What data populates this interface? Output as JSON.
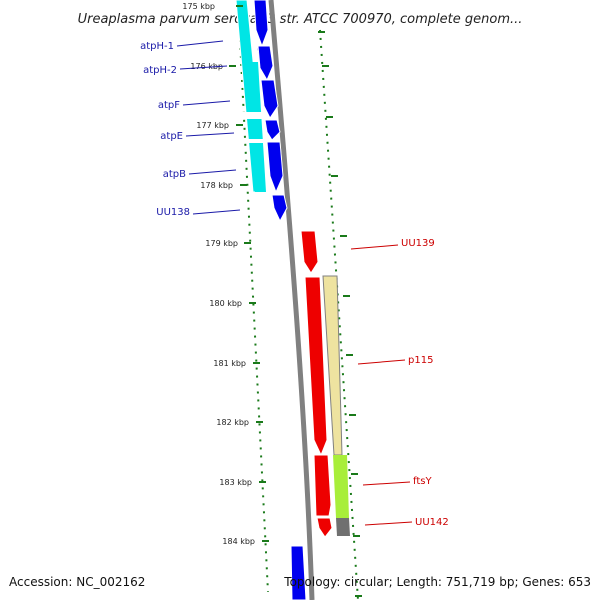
{
  "title": "Ureaplasma parvum serovar 3 str. ATCC 700970, complete genom...",
  "footer": {
    "accession": "Accession: NC_002162",
    "topology": "Topology: circular; Length: 751,719 bp; Genes: 653"
  },
  "colors": {
    "backbone": "#808080",
    "tick": "#1a7a1a",
    "forward_gene": "#0000ee",
    "forward_highlight": "#00e5e5",
    "reverse_gene": "#ee0000",
    "label_blue": "#1a1aa8",
    "label_red": "#cc0000",
    "feature_tan": "#eee3a0",
    "feature_lime": "#a8ee3a",
    "feature_gray": "#707070"
  },
  "ticks": [
    "175 kbp",
    "176 kbp",
    "177 kbp",
    "178 kbp",
    "179 kbp",
    "180 kbp",
    "181 kbp",
    "182 kbp",
    "183 kbp",
    "184 kbp"
  ],
  "genes_left": [
    "atpH-1",
    "atpH-2",
    "atpF",
    "atpE",
    "atpB",
    "UU138"
  ],
  "genes_right": [
    "UU139",
    "p115",
    "ftsY",
    "UU142"
  ]
}
